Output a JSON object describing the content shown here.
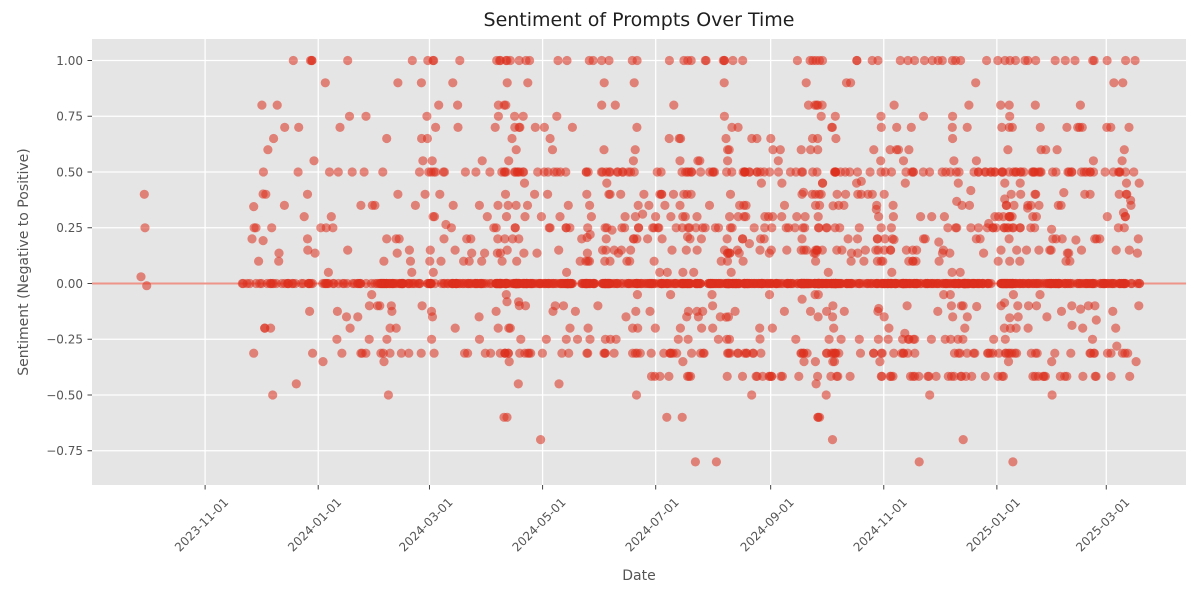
{
  "figure": {
    "title": "Sentiment of Prompts Over Time",
    "xlabel": "Date",
    "ylabel": "Sentiment (Negative to Positive)"
  },
  "chart_data": {
    "type": "scatter",
    "title": "Sentiment of Prompts Over Time",
    "xlabel": "Date",
    "ylabel": "Sentiment (Negative to Positive)",
    "x_axis": {
      "tick_labels": [
        "2023-11-01",
        "2024-01-01",
        "2024-03-01",
        "2024-05-01",
        "2024-07-01",
        "2024-09-01",
        "2024-11-01",
        "2025-01-01",
        "2025-03-01"
      ],
      "tick_day_offsets": [
        61,
        122,
        182,
        243,
        304,
        366,
        427,
        488,
        547
      ],
      "axis_start_date": "2023-09-01",
      "axis_span_days": 590,
      "tick_label_rotation_deg": 45
    },
    "y_axis": {
      "tick_values": [
        1.0,
        0.75,
        0.5,
        0.25,
        0.0,
        -0.25,
        -0.5,
        -0.75
      ],
      "tick_labels": [
        "1.00",
        "0.75",
        "0.50",
        "0.25",
        "0.00",
        "−0.25",
        "−0.50",
        "−0.75"
      ],
      "lim": [
        -0.9,
        1.1
      ]
    },
    "zero_line": {
      "y": 0.0,
      "color": "#ee9488",
      "width": 2
    },
    "style": {
      "figure_bg": "#ffffff",
      "plot_bg": "#e5e5e5",
      "grid_color": "#ffffff",
      "grid_width": 1.3,
      "tick_mark_color": "#444444",
      "point_color": "#dc2f1e",
      "point_opacity": 0.55,
      "point_radius": 4.6,
      "tick_text_color": "#555555",
      "axis_label_color": "#555555",
      "title_color": "#1f1f1f"
    },
    "early_points": [
      {
        "day": 26.4,
        "y": 0.03
      },
      {
        "day": 28.2,
        "y": 0.4
      },
      {
        "day": 28.6,
        "y": 0.25
      },
      {
        "day": 29.5,
        "y": -0.01
      }
    ],
    "generator": {
      "seed": 1337,
      "n_points": 2100,
      "data_day_min": 75,
      "data_day_max": 565,
      "right_bias_exponent": 0.72,
      "hot_date_count": 48,
      "hot_date_prob": 0.27,
      "hot_date_x_jitter_frac": 0.003,
      "zero_band_gaps_frac": [
        [
          0.09,
          0.1
        ],
        [
          0.208,
          0.216
        ],
        [
          0.376,
          0.384
        ],
        [
          0.518,
          0.525
        ]
      ],
      "y_min_clamp": -0.81,
      "y_max_clamp": 1.0,
      "levels": [
        {
          "y": 0.0,
          "w": 0.4
        },
        {
          "y": 0.5,
          "w": 0.075
        },
        {
          "y": -0.3125,
          "w": 0.052
        },
        {
          "y": 0.25,
          "w": 0.032
        },
        {
          "y": 1.0,
          "w": 0.03
        },
        {
          "y": 0.7,
          "w": 0.016
        },
        {
          "y": 0.8,
          "w": 0.011
        },
        {
          "y": 0.9,
          "w": 0.006
        },
        {
          "y": 0.6,
          "w": 0.011
        },
        {
          "y": -0.4167,
          "w": 0.022,
          "xmin": 0.42
        },
        {
          "y": -0.6,
          "w": 0.004
        },
        {
          "y": -0.8,
          "w": 0.0025
        },
        {
          "y": -0.7,
          "w": 0.0015
        },
        {
          "y": -0.5,
          "w": 0.003
        },
        {
          "y": 0.45,
          "w": 0.01
        },
        {
          "y": 0.4,
          "w": 0.018
        },
        {
          "y": 0.35,
          "w": 0.018
        },
        {
          "y": 0.3,
          "w": 0.018
        },
        {
          "y": 0.2,
          "w": 0.026
        },
        {
          "y": 0.15,
          "w": 0.016
        },
        {
          "y": 0.1364,
          "w": 0.013
        },
        {
          "y": 0.1,
          "w": 0.017
        },
        {
          "y": 0.05,
          "w": 0.009
        },
        {
          "y": 0.55,
          "w": 0.009
        },
        {
          "y": 0.65,
          "w": 0.007
        },
        {
          "y": 0.75,
          "w": 0.005
        },
        {
          "y": -0.05,
          "w": 0.007
        },
        {
          "y": -0.1,
          "w": 0.01
        },
        {
          "y": -0.125,
          "w": 0.008
        },
        {
          "y": -0.15,
          "w": 0.01
        },
        {
          "y": -0.2,
          "w": 0.013
        },
        {
          "y": -0.25,
          "w": 0.013
        },
        {
          "y": -0.35,
          "w": 0.005
        },
        {
          "y": -0.45,
          "w": 0.003
        },
        {
          "y": 0.325,
          "w": 0.008,
          "jitter": 0.15
        },
        {
          "y": -0.175,
          "w": 0.006,
          "jitter": 0.12
        }
      ]
    }
  }
}
